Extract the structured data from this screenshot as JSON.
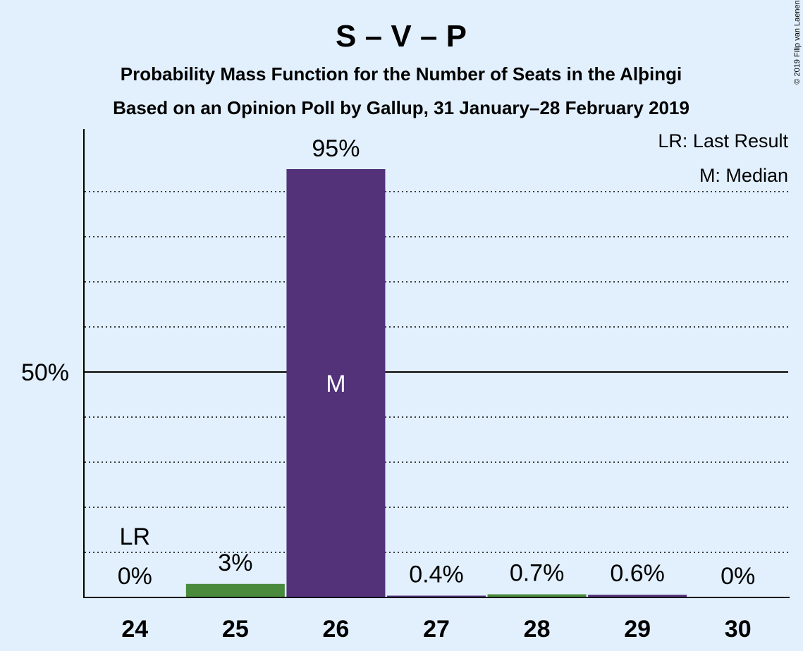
{
  "chart_data": {
    "type": "bar",
    "title": "S – V – P",
    "subtitle_lines": [
      "Probability Mass Function for the Number of Seats in the Alþingi",
      "Based on an Opinion Poll by Gallup, 31 January–28 February 2019"
    ],
    "copyright": "© 2019 Filip van Laenen",
    "legend": [
      "LR: Last Result",
      "M: Median"
    ],
    "legend_placement": "top-right",
    "categories": [
      "24",
      "25",
      "26",
      "27",
      "28",
      "29",
      "30"
    ],
    "values": [
      0,
      3,
      95,
      0.4,
      0.7,
      0.6,
      0
    ],
    "value_labels": [
      "0%",
      "3%",
      "95%",
      "0.4%",
      "0.7%",
      "0.6%",
      "0%"
    ],
    "bar_colors": [
      "#4a8a3c",
      "#4a8a3c",
      "#53327a",
      "#53327a",
      "#4a8a3c",
      "#53327a",
      "#53327a"
    ],
    "last_result": {
      "category": "24",
      "label": "LR"
    },
    "median": {
      "category": "26",
      "label": "M"
    },
    "ylim": [
      0,
      104
    ],
    "gridlines": [
      10,
      20,
      30,
      40,
      60,
      70,
      80,
      90
    ],
    "major_gridline": 50,
    "ytick_labels": [
      {
        "value": 50,
        "label": "50%"
      }
    ],
    "grid": true
  }
}
